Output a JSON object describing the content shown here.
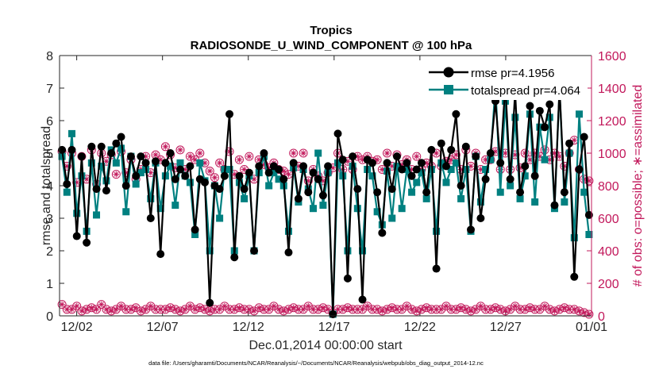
{
  "chart_data": {
    "type": "line",
    "title_line1": "Tropics",
    "title_line2": "RADIOSONDE_U_WIND_COMPONENT @ 100 hPa",
    "xlabel": "Dec.01,2014 00:00:00 start",
    "ylabel_left": "rmse and totalspread",
    "ylabel_right": "# of obs: o=possible; ∗=assimilated",
    "footnote": "data file: /Users/gharamti/Documents/NCAR/Reanalysis/~/Documents/NCAR/Reanalysis/webpub/obs_diag_output_2014-12.nc",
    "x_range": [
      0,
      31
    ],
    "y_left_range": [
      0,
      8
    ],
    "y_right_range": [
      0,
      1600
    ],
    "x_ticks": [
      {
        "value": 1,
        "label": "12/02"
      },
      {
        "value": 6,
        "label": "12/07"
      },
      {
        "value": 11,
        "label": "12/12"
      },
      {
        "value": 16,
        "label": "12/17"
      },
      {
        "value": 21,
        "label": "12/22"
      },
      {
        "value": 26,
        "label": "12/27"
      },
      {
        "value": 31,
        "label": "01/01"
      }
    ],
    "y_left_ticks": [
      0,
      1,
      2,
      3,
      4,
      5,
      6,
      7,
      8
    ],
    "y_right_ticks": [
      0,
      200,
      400,
      600,
      800,
      1000,
      1200,
      1400,
      1600
    ],
    "legend": [
      {
        "name": "rmse pr=4.1956",
        "color": "#000000"
      },
      {
        "name": "totalspread pr=4.064",
        "color": "#008080"
      }
    ],
    "legend_location": "top-right",
    "colors": {
      "rmse": "#000000",
      "spread": "#008080",
      "obs": "#c2185b",
      "axis": "#262626"
    },
    "series": [
      {
        "name": "rmse",
        "values": [
          5.1,
          4.05,
          5.1,
          2.45,
          4.9,
          2.25,
          5.2,
          3.9,
          5.2,
          3.85,
          5.0,
          5.3,
          5.5,
          4.0,
          4.9,
          4.3,
          4.9,
          4.7,
          3.0,
          4.75,
          1.9,
          4.7,
          5.0,
          4.2,
          4.5,
          4.3,
          4.6,
          2.65,
          4.2,
          4.1,
          0.4,
          4.0,
          3.9,
          4.3,
          6.2,
          1.8,
          4.3,
          3.9,
          4.4,
          2.0,
          4.6,
          5.0,
          4.4,
          4.6,
          4.5,
          4.2,
          1.95,
          4.7,
          3.6,
          4.6,
          3.8,
          4.4,
          4.2,
          3.7,
          4.6,
          0.05,
          5.6,
          4.8,
          1.15,
          4.9,
          3.9,
          0.5,
          4.8,
          4.7,
          3.8,
          2.55,
          4.7,
          3.9,
          4.9,
          4.5,
          4.7,
          4.3,
          4.5,
          4.7,
          3.8,
          5.1,
          1.45,
          5.3,
          4.6,
          5.1,
          6.2,
          4.0,
          5.2,
          2.65,
          4.9,
          3.0,
          4.2,
          5.0,
          6.6,
          4.7,
          7.1,
          4.2,
          6.9,
          3.8,
          4.6,
          6.45,
          4.3,
          6.3,
          5.8,
          6.5,
          3.4,
          7.0,
          3.8,
          5.3,
          1.2,
          4.5,
          5.5,
          3.1
        ]
      },
      {
        "name": "totalspread",
        "values": [
          4.9,
          3.8,
          5.6,
          3.15,
          4.3,
          2.6,
          4.7,
          3.1,
          4.6,
          4.15,
          5.1,
          4.7,
          5.15,
          3.2,
          4.9,
          4.05,
          4.4,
          4.5,
          3.6,
          4.7,
          3.3,
          4.3,
          4.6,
          3.4,
          4.7,
          4.3,
          4.1,
          2.5,
          4.7,
          4.15,
          2.0,
          4.0,
          3.0,
          4.5,
          4.5,
          2.0,
          4.1,
          3.6,
          4.3,
          2.0,
          4.4,
          4.9,
          4.0,
          4.4,
          4.2,
          4.0,
          2.6,
          4.55,
          3.5,
          4.5,
          3.9,
          3.3,
          5.0,
          3.4,
          4.4,
          0.05,
          4.7,
          4.3,
          2.0,
          4.6,
          3.3,
          2.0,
          4.5,
          4.3,
          3.2,
          2.8,
          4.45,
          3.0,
          4.6,
          3.3,
          4.5,
          3.8,
          4.1,
          4.4,
          3.6,
          4.5,
          2.6,
          4.7,
          4.1,
          4.5,
          4.7,
          3.6,
          4.5,
          2.6,
          4.9,
          3.5,
          4.5,
          4.8,
          7.1,
          3.8,
          6.6,
          4.0,
          6.1,
          3.6,
          4.3,
          6.2,
          3.5,
          5.8,
          4.8,
          6.1,
          3.3,
          7.0,
          3.5,
          5.0,
          2.4,
          6.2,
          3.8,
          2.5
        ]
      },
      {
        "name": "obs_possible",
        "axis": "right",
        "values": [
          1010,
          920,
          1000,
          820,
          980,
          840,
          1020,
          810,
          1000,
          950,
          990,
          870,
          1010,
          880,
          960,
          840,
          900,
          980,
          880,
          990,
          960,
          1040,
          990,
          910,
          1020,
          900,
          980,
          960,
          1000,
          940,
          890,
          850,
          940,
          900,
          1010,
          870,
          960,
          900,
          980,
          840,
          960,
          930,
          910,
          940,
          900,
          890,
          870,
          1000,
          920,
          1000,
          830,
          900,
          860,
          830,
          880,
          910,
          1000,
          900,
          950,
          900,
          980,
          960,
          980,
          950,
          960,
          900,
          1000,
          920,
          990,
          930,
          960,
          900,
          980,
          900,
          940,
          920,
          1000,
          920,
          950,
          960,
          990,
          900,
          1020,
          920,
          1000,
          900,
          960,
          960,
          1010,
          900,
          1000,
          900,
          990,
          910,
          1000,
          960,
          1000,
          980,
          1020,
          960,
          1000,
          980,
          920,
          1000,
          1080,
          900,
          840,
          830
        ]
      },
      {
        "name": "obs_assimilated",
        "axis": "right",
        "values": [
          70,
          40,
          40,
          60,
          30,
          40,
          50,
          40,
          70,
          40,
          30,
          40,
          60,
          40,
          40,
          50,
          30,
          40,
          60,
          40,
          40,
          40,
          50,
          40,
          30,
          40,
          60,
          40,
          50,
          40,
          30,
          40,
          40,
          60,
          40,
          40,
          50,
          40,
          40,
          30,
          50,
          40,
          40,
          60,
          40,
          30,
          40,
          50,
          40,
          40,
          60,
          40,
          40,
          50,
          40,
          20,
          40,
          40,
          50,
          40,
          40,
          40,
          60,
          40,
          40,
          30,
          40,
          50,
          40,
          40,
          60,
          40,
          30,
          40,
          50,
          40,
          40,
          40,
          60,
          40,
          40,
          50,
          40,
          30,
          40,
          60,
          40,
          40,
          50,
          40,
          30,
          40,
          60,
          40,
          40,
          50,
          40,
          40,
          60,
          40,
          30,
          40,
          50,
          40,
          40,
          30,
          20,
          10
        ]
      }
    ]
  }
}
